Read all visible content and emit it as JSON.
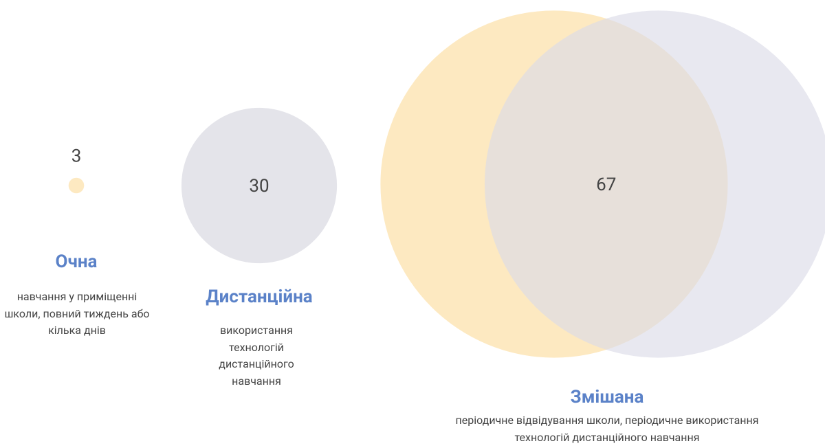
{
  "chart_data": {
    "type": "bubble",
    "categories": [
      "Очна",
      "Дистанційна",
      "Змішана"
    ],
    "descriptions": [
      "навчання у приміщенні школи, повний тиждень або кілька днів",
      "використання технологій дистанційного навчання",
      "періодичне відвідування школи, періодичне використання технологій дистанційного навчання"
    ],
    "values": [
      3,
      30,
      67
    ],
    "colors": [
      "#fde9c1",
      "#e4e4ea",
      [
        "#fde9c1",
        "#dcdce8"
      ]
    ],
    "title_color": "#5b82c8"
  }
}
